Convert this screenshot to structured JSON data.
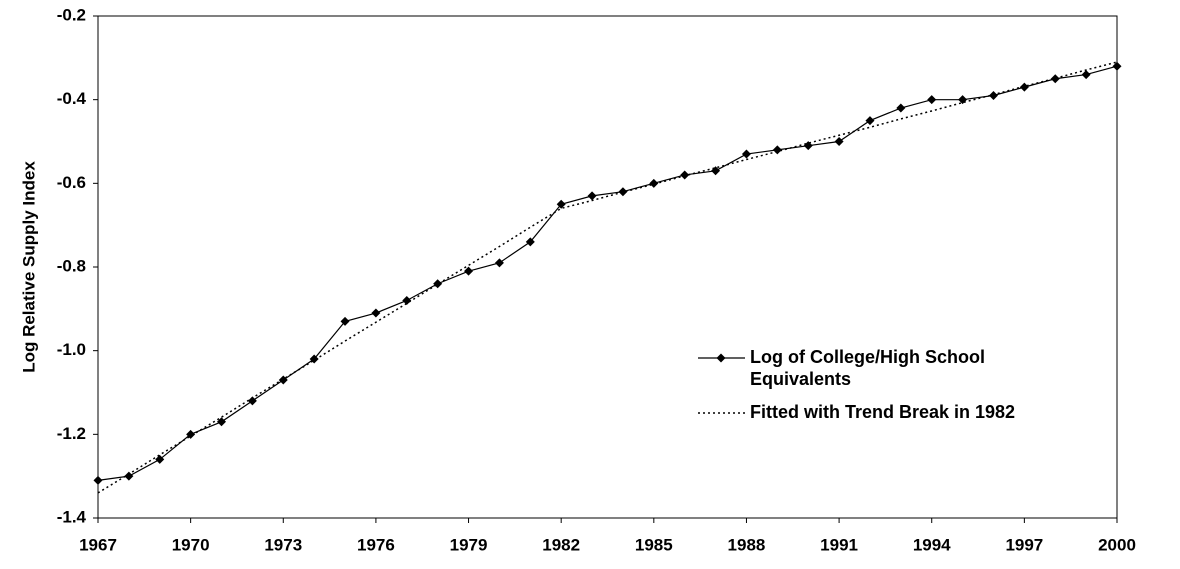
{
  "chart_data": {
    "type": "line",
    "y_label": "Log Relative Supply Index",
    "x": [
      1967,
      1968,
      1969,
      1970,
      1971,
      1972,
      1973,
      1974,
      1975,
      1976,
      1977,
      1978,
      1979,
      1980,
      1981,
      1982,
      1983,
      1984,
      1985,
      1986,
      1987,
      1988,
      1989,
      1990,
      1991,
      1992,
      1993,
      1994,
      1995,
      1996,
      1997,
      1998,
      1999,
      2000
    ],
    "series": [
      {
        "name": "Log of College/High School Equivalents",
        "color": "#000000",
        "style": "solid",
        "marker": "diamond",
        "values": [
          -1.31,
          -1.3,
          -1.26,
          -1.2,
          -1.17,
          -1.12,
          -1.07,
          -1.02,
          -0.93,
          -0.91,
          -0.88,
          -0.84,
          -0.81,
          -0.79,
          -0.74,
          -0.65,
          -0.63,
          -0.62,
          -0.6,
          -0.58,
          -0.57,
          -0.53,
          -0.52,
          -0.51,
          -0.5,
          -0.45,
          -0.42,
          -0.4,
          -0.4,
          -0.39,
          -0.37,
          -0.35,
          -0.34,
          -0.32
        ]
      },
      {
        "name": "Fitted with Trend Break in 1982",
        "color": "#000000",
        "style": "dotted",
        "values": [
          -1.34,
          -1.295,
          -1.249,
          -1.204,
          -1.159,
          -1.113,
          -1.068,
          -1.023,
          -0.977,
          -0.932,
          -0.887,
          -0.841,
          -0.796,
          -0.751,
          -0.705,
          -0.66,
          -0.641,
          -0.621,
          -0.602,
          -0.582,
          -0.563,
          -0.543,
          -0.524,
          -0.504,
          -0.485,
          -0.466,
          -0.446,
          -0.427,
          -0.407,
          -0.388,
          -0.368,
          -0.349,
          -0.329,
          -0.31
        ]
      }
    ],
    "xlim": [
      1967,
      2000
    ],
    "xticks": [
      1967,
      1970,
      1973,
      1976,
      1979,
      1982,
      1985,
      1988,
      1991,
      1994,
      1997,
      2000
    ],
    "ylim": [
      -1.4,
      -0.2
    ],
    "yticks": [
      -1.4,
      -1.2,
      {
        "value": -1,
        "label": "-1.0"
      },
      -0.8,
      -0.6,
      -0.4,
      -0.2
    ],
    "grid": false
  }
}
